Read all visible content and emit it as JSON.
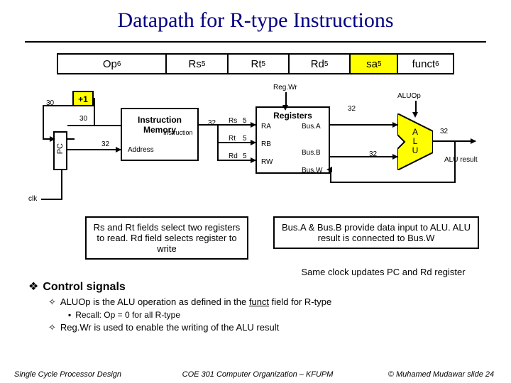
{
  "title": "Datapath for R-type Instructions",
  "fields": [
    {
      "label": "Op",
      "sup": "6",
      "width": 160,
      "bg": "#ffffff"
    },
    {
      "label": "Rs",
      "sup": "5",
      "width": 90,
      "bg": "#ffffff"
    },
    {
      "label": "Rt",
      "sup": "5",
      "width": 90,
      "bg": "#ffffff"
    },
    {
      "label": "Rd",
      "sup": "5",
      "width": 90,
      "bg": "#ffffff"
    },
    {
      "label": "sa",
      "sup": "5",
      "width": 70,
      "bg": "#ffff00"
    },
    {
      "label": "funct",
      "sup": "6",
      "width": 80,
      "bg": "#ffffff"
    }
  ],
  "signals": {
    "regwr": "Reg.Wr",
    "aluop": "ALUOp",
    "plus1": "+1",
    "pc": "PC",
    "imem_l1": "Instruction",
    "imem_l2": "Memory",
    "imem_instr": "Instruction",
    "imem_addr": "Address",
    "regs": "Registers",
    "ra": "RA",
    "rb": "RB",
    "rw": "RW",
    "busa": "Bus.A",
    "busb": "Bus.B",
    "busw": "Bus.W",
    "rs": "Rs",
    "rt": "Rt",
    "rd": "Rd",
    "alu": "A\nL\nU",
    "alu_result": "ALU result",
    "clk": "clk",
    "w30a": "30",
    "w30b": "30",
    "w32a": "32",
    "w32b": "32",
    "w32c": "32",
    "w32d": "32",
    "w32e": "32",
    "w5a": "5",
    "w5b": "5",
    "w5c": "5"
  },
  "callouts": {
    "left": "Rs and Rt fields select two registers to read. Rd field selects register to write",
    "right": "Bus.A & Bus.B provide data input to ALU. ALU result is connected to Bus.W",
    "bottom": "Same clock updates PC and Rd register"
  },
  "bullets": {
    "head": "Control signals",
    "b1_pre": "ALUOp is the ALU operation as defined in the ",
    "b1_u": "funct",
    "b1_post": " field for R-type",
    "b1a": "Recall: Op = 0 for all R-type",
    "b2": "Reg.Wr is used to enable the writing of the ALU result"
  },
  "footer": {
    "left": "Single Cycle Processor Design",
    "mid": "COE 301 Computer Organization – KFUPM",
    "right": "© Muhamed Mudawar slide 24"
  },
  "colors": {
    "alu_fill": "#ffff00",
    "title": "#000080"
  }
}
